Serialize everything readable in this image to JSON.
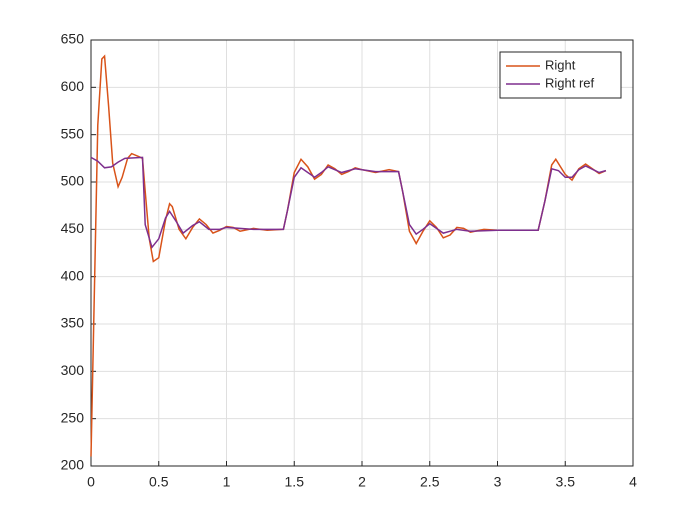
{
  "chart_data": {
    "type": "line",
    "xlim": [
      0,
      4
    ],
    "xticks": [
      0,
      0.5,
      1,
      1.5,
      2,
      2.5,
      3,
      3.5,
      4
    ],
    "ylim": [
      200,
      650
    ],
    "yticks": [
      200,
      250,
      300,
      350,
      400,
      450,
      500,
      550,
      600,
      650
    ],
    "grid": true,
    "legend": "northeast",
    "series": [
      {
        "name": "Right",
        "color": "#d95319",
        "x": [
          0,
          0.02,
          0.05,
          0.08,
          0.1,
          0.13,
          0.16,
          0.2,
          0.23,
          0.27,
          0.3,
          0.35,
          0.38,
          0.4,
          0.43,
          0.46,
          0.5,
          0.55,
          0.58,
          0.6,
          0.65,
          0.7,
          0.75,
          0.8,
          0.85,
          0.9,
          0.95,
          1.0,
          1.05,
          1.1,
          1.2,
          1.3,
          1.42,
          1.45,
          1.5,
          1.55,
          1.6,
          1.65,
          1.7,
          1.75,
          1.8,
          1.85,
          1.9,
          1.95,
          2.0,
          2.1,
          2.2,
          2.27,
          2.3,
          2.35,
          2.4,
          2.45,
          2.5,
          2.55,
          2.6,
          2.65,
          2.7,
          2.75,
          2.8,
          2.9,
          3.0,
          3.3,
          3.35,
          3.4,
          3.43,
          3.5,
          3.55,
          3.6,
          3.65,
          3.7,
          3.75,
          3.8
        ],
        "values": [
          210,
          350,
          560,
          630,
          633,
          580,
          520,
          495,
          505,
          525,
          530,
          527,
          525,
          490,
          440,
          416,
          420,
          460,
          477,
          474,
          450,
          440,
          452,
          461,
          455,
          446,
          449,
          453,
          452,
          448,
          451,
          449,
          450,
          470,
          510,
          524,
          516,
          503,
          508,
          518,
          514,
          508,
          511,
          515,
          513,
          510,
          513,
          511,
          490,
          448,
          435,
          448,
          459,
          452,
          441,
          444,
          452,
          451,
          447,
          450,
          449,
          449,
          480,
          518,
          524,
          508,
          502,
          514,
          519,
          514,
          509,
          512
        ]
      },
      {
        "name": "Right ref",
        "color": "#7e2f8e",
        "x": [
          0,
          0.05,
          0.1,
          0.15,
          0.2,
          0.25,
          0.38,
          0.4,
          0.45,
          0.5,
          0.55,
          0.58,
          0.63,
          0.68,
          0.75,
          0.8,
          0.87,
          0.95,
          1.0,
          1.2,
          1.42,
          1.45,
          1.5,
          1.55,
          1.6,
          1.65,
          1.7,
          1.75,
          1.85,
          1.95,
          2.1,
          2.27,
          2.3,
          2.35,
          2.4,
          2.45,
          2.5,
          2.55,
          2.6,
          2.7,
          2.8,
          3.0,
          3.3,
          3.35,
          3.4,
          3.45,
          3.5,
          3.55,
          3.6,
          3.65,
          3.75,
          3.8
        ],
        "values": [
          526,
          522,
          515,
          516,
          521,
          525,
          526,
          455,
          431,
          440,
          462,
          469,
          458,
          446,
          454,
          458,
          450,
          450,
          452,
          450,
          450,
          470,
          505,
          515,
          510,
          505,
          510,
          516,
          510,
          514,
          511,
          511,
          490,
          455,
          445,
          450,
          456,
          451,
          446,
          450,
          448,
          449,
          449,
          480,
          514,
          512,
          505,
          505,
          513,
          517,
          510,
          512
        ]
      }
    ]
  }
}
